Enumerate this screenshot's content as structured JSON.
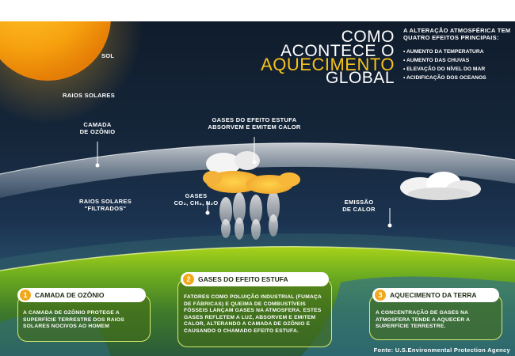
{
  "title": {
    "line1": "COMO",
    "line2": "ACONTECE O",
    "line3": "AQUECIMENTO",
    "line4": "GLOBAL"
  },
  "effects": {
    "heading_line1": "A ALTERAÇÃO ATMOSFÉRICA TEM",
    "heading_line2": "QUATRO EFEITOS PRINCIPAIS:",
    "items": [
      "AUMENTO DA TEMPERATURA",
      "AUMENTO DAS CHUVAS",
      "ELEVAÇÃO DO NÍVEL DO MAR",
      "ACIDIFICAÇÃO DOS OCEANOS"
    ]
  },
  "labels": {
    "sol": "SOL",
    "raios_solares": "RAIOS SOLARES",
    "camada_ozonio_1": "CAMADA",
    "camada_ozonio_2": "DE OZÔNIO",
    "gases_estufa_1": "GASES DO EFEITO ESTUFA",
    "gases_estufa_2": "ABSORVEM E EMITEM CALOR",
    "raios_filtrados_1": "RAIOS SOLARES",
    "raios_filtrados_2": "\"FILTRADOS\"",
    "gases": "GASES",
    "gases_formula": "CO₂, CH₄, N₂O",
    "emissao_1": "EMISSÃO",
    "emissao_2": "DE CALOR"
  },
  "boxes": [
    {
      "number": "1",
      "title": "CAMADA DE OZÔNIO",
      "text": "A CAMADA DE OZÔNIO PROTEGE A SUPERFÍCIE TERRESTRE DOS RAIOS SOLARES NOCIVOS AO HOMEM"
    },
    {
      "number": "2",
      "title": "GASES DO EFEITO ESTUFA",
      "text": "FATORES COMO POLUIÇÃO INDUSTRIAL (FUMAÇA DE FÁBRICAS) E QUEIMA DE COMBUSTÍVEIS FÓSSEIS LANÇAM GASES NA ATMOSFERA. ESTES GASES REFLETEM A LUZ, ABSORVEM E EMITEM CALOR, ALTERANDO A CAMADA DE OZÔNIO E CAUSANDO O CHAMADO EFEITO ESTUFA."
    },
    {
      "number": "3",
      "title": "AQUECIMENTO DA TERRA",
      "text": "A CONCENTRAÇÃO DE GASES NA ATMOSFERA TENDE A AQUECER A SUPERFÍCIE TERRESTRE."
    }
  ],
  "source": "Fonte: U.S.Environmental Protection Agency",
  "colors": {
    "title_white": "#ffffff",
    "title_accent": "#f6c21a",
    "badge": "#f2a81b",
    "box_border": "#d9ec6c"
  }
}
